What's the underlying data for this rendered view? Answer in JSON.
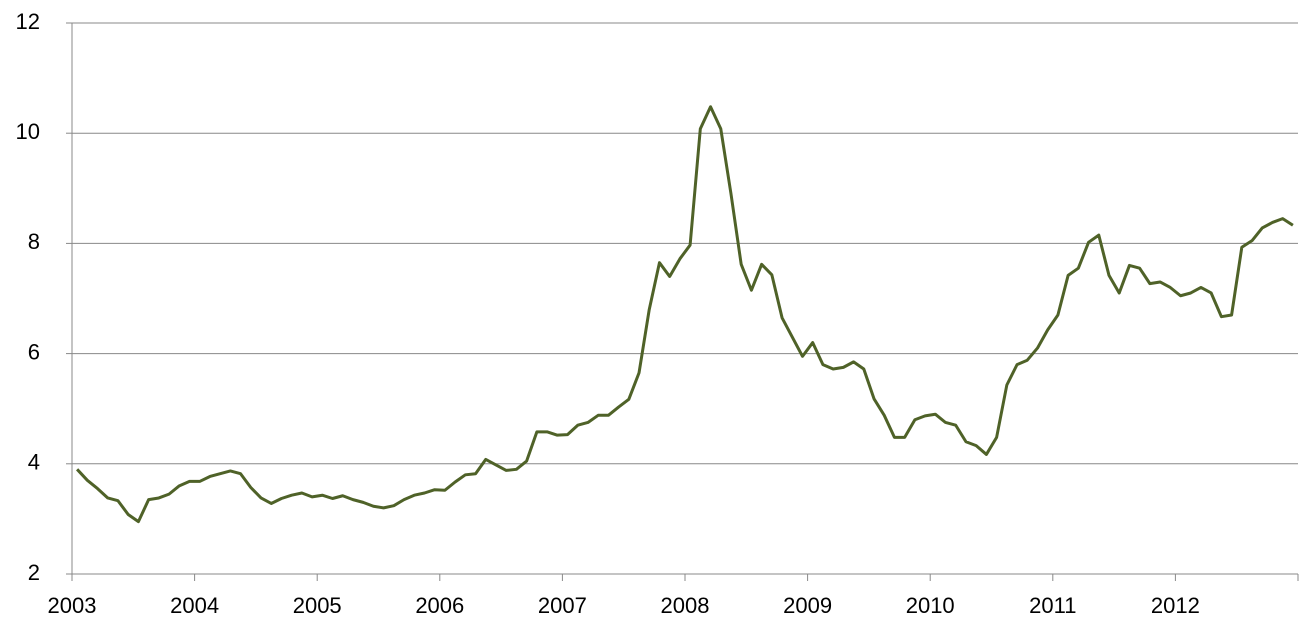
{
  "chart_data": {
    "type": "line",
    "categories": [
      "2003",
      null,
      null,
      null,
      null,
      null,
      null,
      null,
      null,
      null,
      null,
      null,
      "2004",
      null,
      null,
      null,
      null,
      null,
      null,
      null,
      null,
      null,
      null,
      null,
      "2005",
      null,
      null,
      null,
      null,
      null,
      null,
      null,
      null,
      null,
      null,
      null,
      "2006",
      null,
      null,
      null,
      null,
      null,
      null,
      null,
      null,
      null,
      null,
      null,
      "2007",
      null,
      null,
      null,
      null,
      null,
      null,
      null,
      null,
      null,
      null,
      null,
      "2008",
      null,
      null,
      null,
      null,
      null,
      null,
      null,
      null,
      null,
      null,
      null,
      "2009",
      null,
      null,
      null,
      null,
      null,
      null,
      null,
      null,
      null,
      null,
      null,
      "2010",
      null,
      null,
      null,
      null,
      null,
      null,
      null,
      null,
      null,
      null,
      null,
      "2011",
      null,
      null,
      null,
      null,
      null,
      null,
      null,
      null,
      null,
      null,
      null,
      "2012",
      null,
      null,
      null,
      null,
      null,
      null,
      null,
      null,
      null,
      null,
      null
    ],
    "values": [
      3.9,
      3.7,
      3.55,
      3.38,
      3.33,
      3.08,
      2.95,
      3.35,
      3.38,
      3.45,
      3.6,
      3.68,
      3.68,
      3.77,
      3.82,
      3.87,
      3.82,
      3.57,
      3.38,
      3.28,
      3.37,
      3.43,
      3.47,
      3.4,
      3.43,
      3.37,
      3.42,
      3.35,
      3.3,
      3.23,
      3.2,
      3.24,
      3.35,
      3.43,
      3.47,
      3.53,
      3.52,
      3.67,
      3.8,
      3.82,
      4.08,
      3.98,
      3.88,
      3.9,
      4.05,
      4.58,
      4.58,
      4.52,
      4.53,
      4.7,
      4.75,
      4.88,
      4.88,
      5.03,
      5.17,
      5.65,
      6.8,
      7.65,
      7.4,
      7.72,
      7.97,
      10.08,
      10.48,
      10.08,
      8.9,
      7.62,
      7.15,
      7.62,
      7.43,
      6.65,
      6.3,
      5.95,
      6.2,
      5.8,
      5.72,
      5.75,
      5.85,
      5.72,
      5.18,
      4.88,
      4.48,
      4.48,
      4.8,
      4.87,
      4.9,
      4.75,
      4.7,
      4.4,
      4.33,
      4.17,
      4.48,
      5.43,
      5.8,
      5.88,
      6.1,
      6.43,
      6.7,
      7.42,
      7.55,
      8.02,
      8.15,
      7.42,
      7.1,
      7.6,
      7.55,
      7.27,
      7.3,
      7.2,
      7.05,
      7.1,
      7.2,
      7.1,
      6.67,
      6.7,
      7.93,
      8.05,
      8.28,
      8.38,
      8.45,
      8.33
    ],
    "color": "#4f6228",
    "ylim": [
      2,
      12
    ],
    "yticks": [
      2,
      4,
      6,
      8,
      10,
      12
    ],
    "grid": true
  }
}
